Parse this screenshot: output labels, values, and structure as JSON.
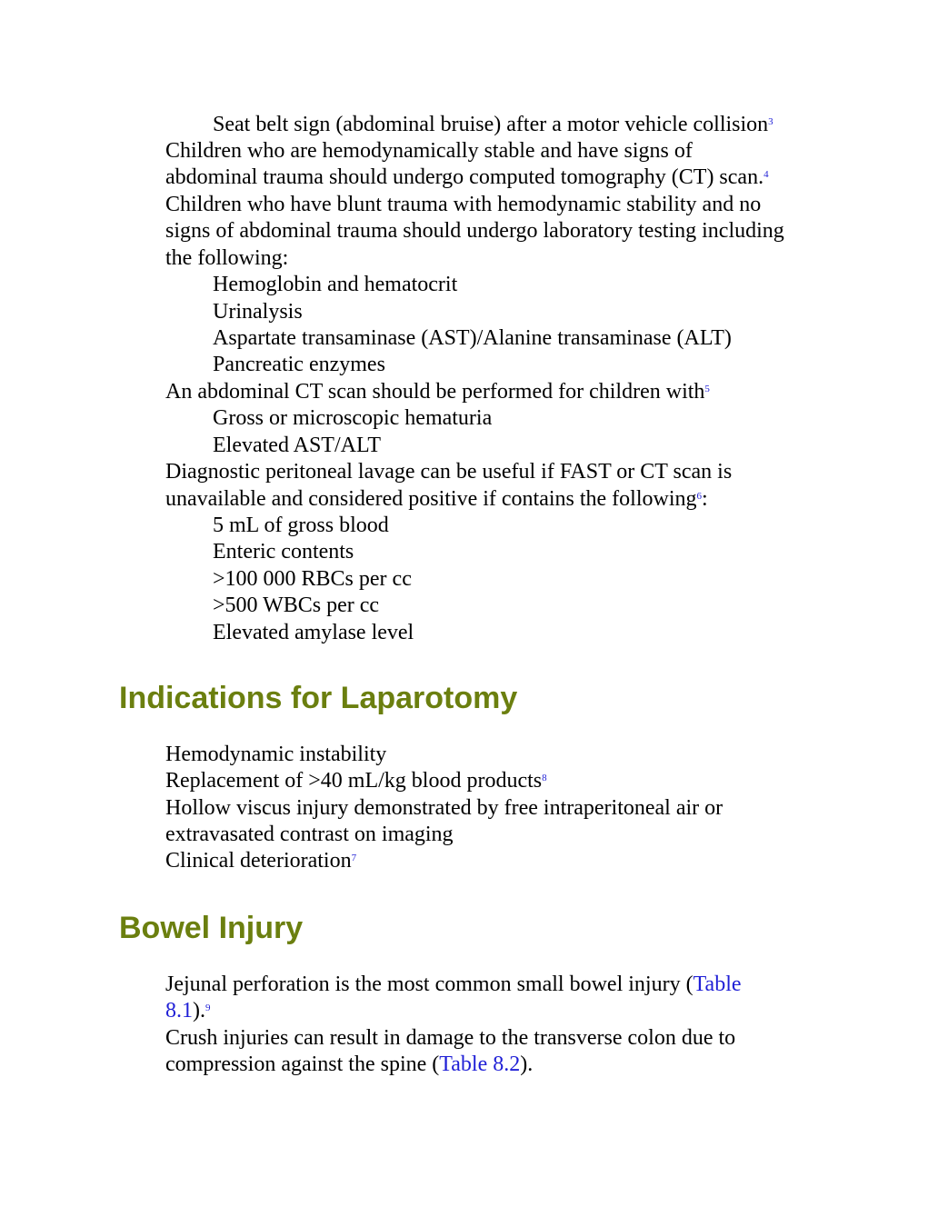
{
  "colors": {
    "heading": "#6b7f0f",
    "link": "#1f1fd6",
    "text": "#000000"
  },
  "section1": {
    "seat_belt": "Seat belt sign (abdominal bruise) after a motor vehicle collision",
    "ref_seat_belt": "3",
    "stable_signs_1": "Children who are hemodynamically stable and have signs of",
    "stable_signs_2": "abdominal trauma should undergo computed tomography (CT) scan.",
    "ref_ct": "4",
    "blunt_1": "Children who have blunt trauma with hemodynamic stability and no",
    "blunt_2": "signs of abdominal trauma should undergo laboratory testing including",
    "blunt_3": "the following:",
    "labs": [
      "Hemoglobin and hematocrit",
      "Urinalysis",
      "Aspartate transaminase (AST)/Alanine transaminase (ALT)",
      "Pancreatic enzymes"
    ],
    "ct_for": "An abdominal CT scan should be performed for children with",
    "ref_ct_for": "5",
    "ct_items": [
      "Gross or microscopic hematuria",
      "Elevated AST/ALT"
    ],
    "dpl_1": "Diagnostic peritoneal lavage can be useful if FAST or CT scan is",
    "dpl_2": "unavailable and considered positive if contains the following",
    "ref_dpl": "6",
    "dpl_colon": ":",
    "dpl_items": [
      "5 mL of gross blood",
      "Enteric contents",
      ">100 000 RBCs per cc",
      ">500 WBCs per cc",
      "Elevated amylase level"
    ]
  },
  "laparotomy": {
    "heading": "Indications for Laparotomy",
    "item1": "Hemodynamic instability",
    "item2": "Replacement of >40 mL/kg blood products",
    "ref_item2": "8",
    "item3_1": "Hollow viscus injury demonstrated by free intraperitoneal air or",
    "item3_2": "extravasated contrast on imaging",
    "item4": "Clinical deterioration",
    "ref_item4": "7"
  },
  "bowel": {
    "heading": "Bowel Injury",
    "jejunal_1": "Jejunal perforation is the most common small bowel injury (",
    "jejunal_link_1": "Table",
    "jejunal_link_2": "8.1",
    "jejunal_close": ").",
    "ref_jejunal": "9",
    "crush_1": "Crush injuries can result in damage to the transverse colon due to",
    "crush_2": "compression against the spine (",
    "crush_link": "Table 8.2",
    "crush_close": ")."
  }
}
